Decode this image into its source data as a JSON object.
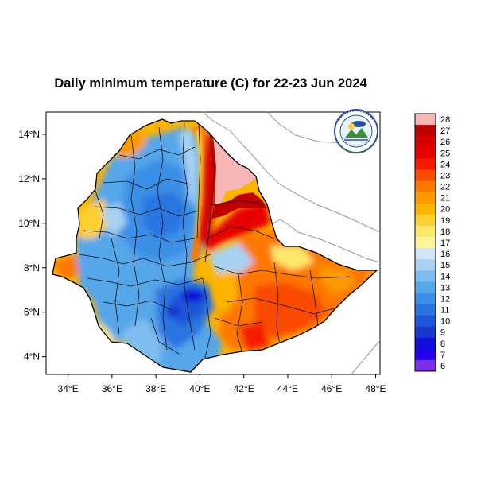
{
  "title": "Daily minimum temperature (C) for 22-23 Jun 2024",
  "map": {
    "lon_range": [
      33,
      48.2
    ],
    "lat_range": [
      3.2,
      15
    ],
    "lon_ticks": [
      {
        "value": 34,
        "label": "34°E"
      },
      {
        "value": 36,
        "label": "36°E"
      },
      {
        "value": 38,
        "label": "38°E"
      },
      {
        "value": 40,
        "label": "40°E"
      },
      {
        "value": 42,
        "label": "42°E"
      },
      {
        "value": 44,
        "label": "44°E"
      },
      {
        "value": 46,
        "label": "46°E"
      },
      {
        "value": 48,
        "label": "48°E"
      }
    ],
    "lat_ticks": [
      {
        "value": 14,
        "label": "14°N"
      },
      {
        "value": 12,
        "label": "12°N"
      },
      {
        "value": 10,
        "label": "10°N"
      },
      {
        "value": 8,
        "label": "8°N"
      },
      {
        "value": 6,
        "label": "6°N"
      },
      {
        "value": 4,
        "label": "4°N"
      }
    ]
  },
  "colorbar": [
    {
      "label": "28",
      "color": "#f7b6b8"
    },
    {
      "label": "27",
      "color": "#c00000"
    },
    {
      "label": "26",
      "color": "#d40000"
    },
    {
      "label": "25",
      "color": "#e60000"
    },
    {
      "label": "24",
      "color": "#f51a00"
    },
    {
      "label": "23",
      "color": "#fa4a00"
    },
    {
      "label": "22",
      "color": "#fd7800"
    },
    {
      "label": "21",
      "color": "#fd9a00"
    },
    {
      "label": "20",
      "color": "#fdb400"
    },
    {
      "label": "19",
      "color": "#fdd033"
    },
    {
      "label": "18",
      "color": "#fde86a"
    },
    {
      "label": "17",
      "color": "#fff49a"
    },
    {
      "label": "16",
      "color": "#cfe6f7"
    },
    {
      "label": "15",
      "color": "#a7d2f2"
    },
    {
      "label": "14",
      "color": "#7fbdee"
    },
    {
      "label": "13",
      "color": "#56a6ea"
    },
    {
      "label": "12",
      "color": "#3a8fe6"
    },
    {
      "label": "11",
      "color": "#2a74e0"
    },
    {
      "label": "10",
      "color": "#1f56d8"
    },
    {
      "label": "9",
      "color": "#1638cf"
    },
    {
      "label": "8",
      "color": "#1010d8"
    },
    {
      "label": "7",
      "color": "#2200ee"
    },
    {
      "label": "6",
      "color": "#7a30e8"
    }
  ],
  "logo": {
    "icon": "ethiopian-meteorology-institute-logo"
  }
}
